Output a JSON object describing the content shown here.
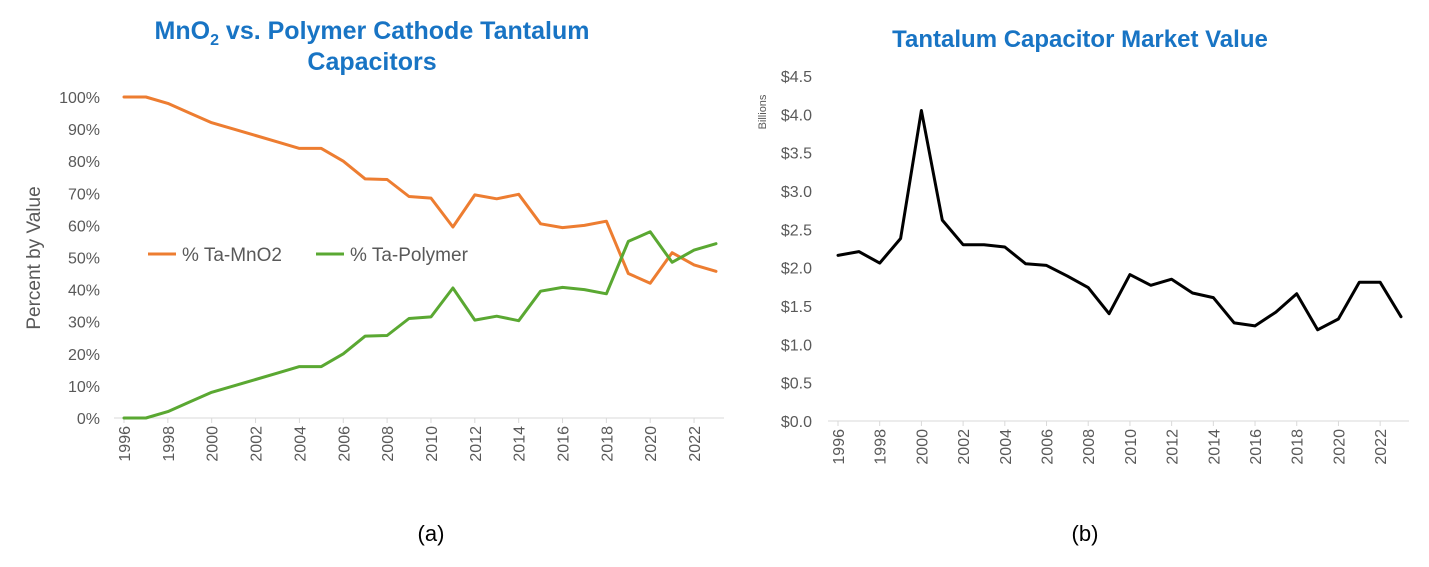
{
  "chart_data": [
    {
      "type": "line",
      "title": "MnO2 vs. Polymer Cathode Tantalum Capacitors",
      "title_line1_prefix": "MnO",
      "title_line1_subscript": "2",
      "title_line1_suffix": " vs. Polymer Cathode Tantalum",
      "title_line2": "Capacitors",
      "ylabel": "Percent by Value",
      "xlabel": "",
      "ylim": [
        0,
        100
      ],
      "yticks": [
        "0%",
        "10%",
        "20%",
        "30%",
        "40%",
        "50%",
        "60%",
        "70%",
        "80%",
        "90%",
        "100%"
      ],
      "xticks": [
        "1996",
        "1998",
        "2000",
        "2002",
        "2004",
        "2006",
        "2008",
        "2010",
        "2012",
        "2014",
        "2016",
        "2018",
        "2020",
        "2022"
      ],
      "x": [
        1996,
        1997,
        1998,
        1999,
        2000,
        2001,
        2002,
        2003,
        2004,
        2005,
        2006,
        2007,
        2008,
        2009,
        2010,
        2011,
        2012,
        2013,
        2014,
        2015,
        2016,
        2017,
        2018,
        2019,
        2020,
        2021,
        2022,
        2023
      ],
      "series": [
        {
          "name": "% Ta-MnO2",
          "color": "#ed7d31",
          "values": [
            100,
            100,
            98,
            95,
            92,
            90,
            88,
            86,
            84,
            84,
            80,
            74.5,
            74.3,
            69,
            68.5,
            59.5,
            69.5,
            68.3,
            69.7,
            60.5,
            59.3,
            60,
            61.3,
            45,
            42,
            51.5,
            47.7,
            45.7
          ]
        },
        {
          "name": "% Ta-Polymer",
          "color": "#5aa832",
          "values": [
            0,
            0,
            2,
            5,
            8,
            10,
            12,
            14,
            16,
            16,
            20,
            25.5,
            25.7,
            31,
            31.5,
            40.5,
            30.5,
            31.7,
            30.3,
            39.5,
            40.7,
            40,
            38.7,
            55,
            58,
            48.5,
            52.3,
            54.3
          ]
        }
      ],
      "legend": "inside-center",
      "caption": "(a)"
    },
    {
      "type": "line",
      "title": "Tantalum Capacitor Market Value",
      "ylabel": "Billions",
      "xlabel": "",
      "ylim": [
        0,
        4.5
      ],
      "yticks": [
        "$0.0",
        "$0.5",
        "$1.0",
        "$1.5",
        "$2.0",
        "$2.5",
        "$3.0",
        "$3.5",
        "$4.0",
        "$4.5"
      ],
      "xticks": [
        "1996",
        "1998",
        "2000",
        "2002",
        "2004",
        "2006",
        "2008",
        "2010",
        "2012",
        "2014",
        "2016",
        "2018",
        "2020",
        "2022"
      ],
      "x": [
        1996,
        1997,
        1998,
        1999,
        2000,
        2001,
        2002,
        2003,
        2004,
        2005,
        2006,
        2007,
        2008,
        2009,
        2010,
        2011,
        2012,
        2013,
        2014,
        2015,
        2016,
        2017,
        2018,
        2019,
        2020,
        2021,
        2022,
        2023
      ],
      "series": [
        {
          "name": "Market Value",
          "color": "#000000",
          "values": [
            2.16,
            2.21,
            2.06,
            2.38,
            4.05,
            2.62,
            2.3,
            2.3,
            2.27,
            2.05,
            2.03,
            1.89,
            1.74,
            1.4,
            1.91,
            1.77,
            1.85,
            1.67,
            1.61,
            1.28,
            1.24,
            1.42,
            1.66,
            1.19,
            1.33,
            1.81,
            1.81,
            1.36
          ]
        }
      ],
      "caption": "(b)"
    }
  ]
}
